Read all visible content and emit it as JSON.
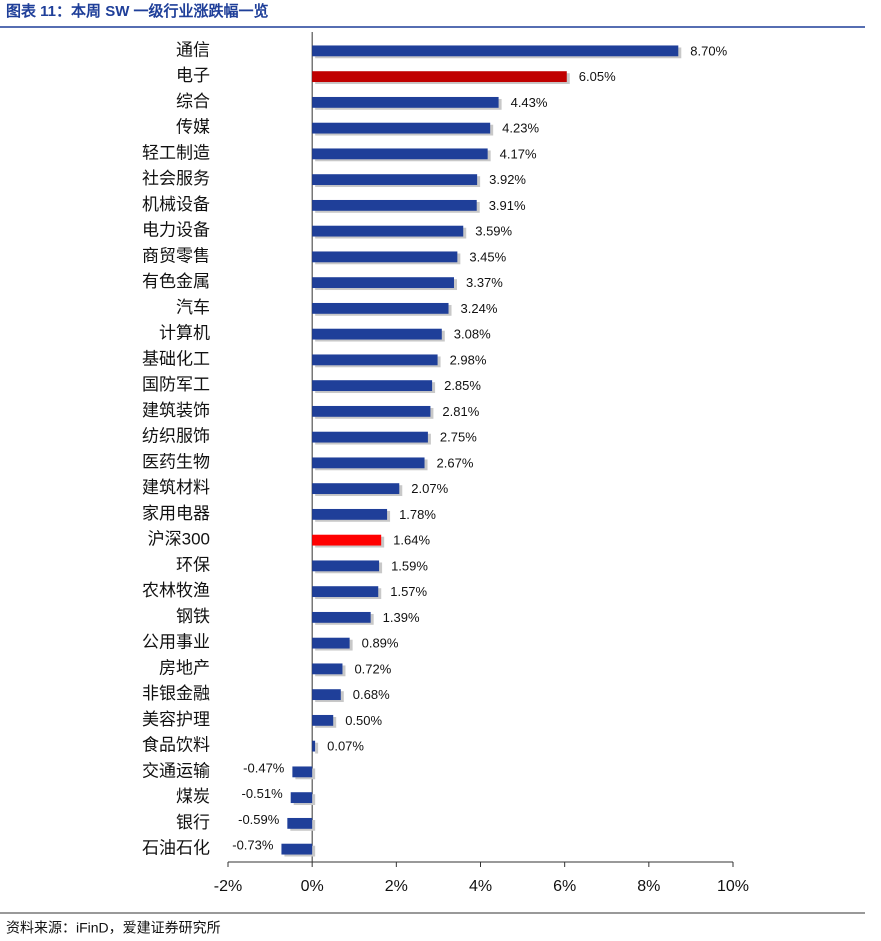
{
  "chart_data": {
    "type": "hbar",
    "title": "图表 11：本周 SW 一级行业涨跌幅一览",
    "source": "资料来源：iFinD，爱建证券研究所",
    "categories": [
      "通信",
      "电子",
      "综合",
      "传媒",
      "轻工制造",
      "社会服务",
      "机械设备",
      "电力设备",
      "商贸零售",
      "有色金属",
      "汽车",
      "计算机",
      "基础化工",
      "国防军工",
      "建筑装饰",
      "纺织服饰",
      "医药生物",
      "建筑材料",
      "家用电器",
      "沪深300",
      "环保",
      "农林牧渔",
      "钢铁",
      "公用事业",
      "房地产",
      "非银金融",
      "美容护理",
      "食品饮料",
      "交通运输",
      "煤炭",
      "银行",
      "石油石化"
    ],
    "values": [
      8.7,
      6.05,
      4.43,
      4.23,
      4.17,
      3.92,
      3.91,
      3.59,
      3.45,
      3.37,
      3.24,
      3.08,
      2.98,
      2.85,
      2.81,
      2.75,
      2.67,
      2.07,
      1.78,
      1.64,
      1.59,
      1.57,
      1.39,
      0.89,
      0.72,
      0.68,
      0.5,
      0.07,
      -0.47,
      -0.51,
      -0.59,
      -0.73
    ],
    "value_labels": [
      "8.70%",
      "6.05%",
      "4.43%",
      "4.23%",
      "4.17%",
      "3.92%",
      "3.91%",
      "3.59%",
      "3.45%",
      "3.37%",
      "3.24%",
      "3.08%",
      "2.98%",
      "2.85%",
      "2.81%",
      "2.75%",
      "2.67%",
      "2.07%",
      "1.78%",
      "1.64%",
      "1.59%",
      "1.57%",
      "1.39%",
      "0.89%",
      "0.72%",
      "0.68%",
      "0.50%",
      "0.07%",
      "-0.47%",
      "-0.51%",
      "-0.59%",
      "-0.73%"
    ],
    "colors": [
      "#1f3f99",
      "#c00000",
      "#1f3f99",
      "#1f3f99",
      "#1f3f99",
      "#1f3f99",
      "#1f3f99",
      "#1f3f99",
      "#1f3f99",
      "#1f3f99",
      "#1f3f99",
      "#1f3f99",
      "#1f3f99",
      "#1f3f99",
      "#1f3f99",
      "#1f3f99",
      "#1f3f99",
      "#1f3f99",
      "#1f3f99",
      "#ff0000",
      "#1f3f99",
      "#1f3f99",
      "#1f3f99",
      "#1f3f99",
      "#1f3f99",
      "#1f3f99",
      "#1f3f99",
      "#1f3f99",
      "#1f3f99",
      "#1f3f99",
      "#1f3f99",
      "#1f3f99"
    ],
    "xlim": [
      -2,
      10
    ],
    "xticks": [
      {
        "value": -2,
        "label": "-2%"
      },
      {
        "value": 0,
        "label": "0%"
      },
      {
        "value": 2,
        "label": "2%"
      },
      {
        "value": 4,
        "label": "4%"
      },
      {
        "value": 6,
        "label": "6%"
      },
      {
        "value": 8,
        "label": "8%"
      },
      {
        "value": 10,
        "label": "10%"
      }
    ],
    "grid": false
  }
}
